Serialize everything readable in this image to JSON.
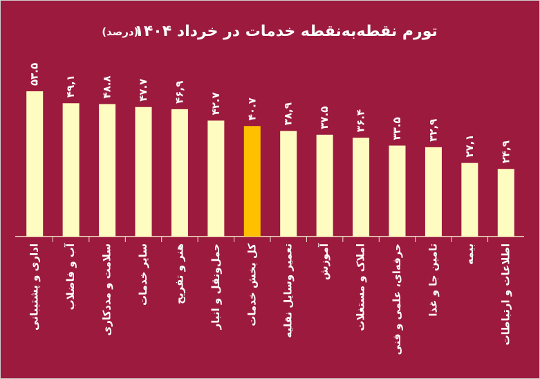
{
  "chart_data": {
    "type": "bar",
    "title": "تورم نقطه‌به‌نقطه خدمات در خرداد ۱۴۰۴",
    "subtitle": "(درصد)",
    "categories": [
      "اداری و پشتیبانی",
      "آب و فاضلاب",
      "سلامت و مددکاری",
      "سایر خدمات",
      "هنر و تفریح",
      "حمل‌ونقل و انبار",
      "کل بخش خدمات",
      "تعمیر وسایل نقلیه",
      "آموزش",
      "املاک و مستغلات",
      "حرفه‌ای، علمی و فنی",
      "تامین جا و غذا",
      "بیمه",
      "اطلاعات و ارتباطات"
    ],
    "values": [
      53.5,
      49.1,
      48.8,
      47.7,
      46.9,
      42.7,
      40.7,
      38.9,
      37.5,
      36.4,
      33.5,
      32.9,
      27.1,
      24.9
    ],
    "value_labels": [
      "۵۳.۵",
      "۴۹,۱",
      "۴۸.۸",
      "۴۷.۷",
      "۴۶,۹",
      "۴۲.۷",
      "۴۰.۷",
      "۳۸,۹",
      "۳۷.۵",
      "۳۶.۴",
      "۳۳.۵",
      "۳۲,۹",
      "۲۷,۱",
      "۲۴,۹"
    ],
    "color": "#fffcc2",
    "highlight_color": "#ffc000",
    "highlight_index": 6,
    "background": "#9b1a3e"
  }
}
